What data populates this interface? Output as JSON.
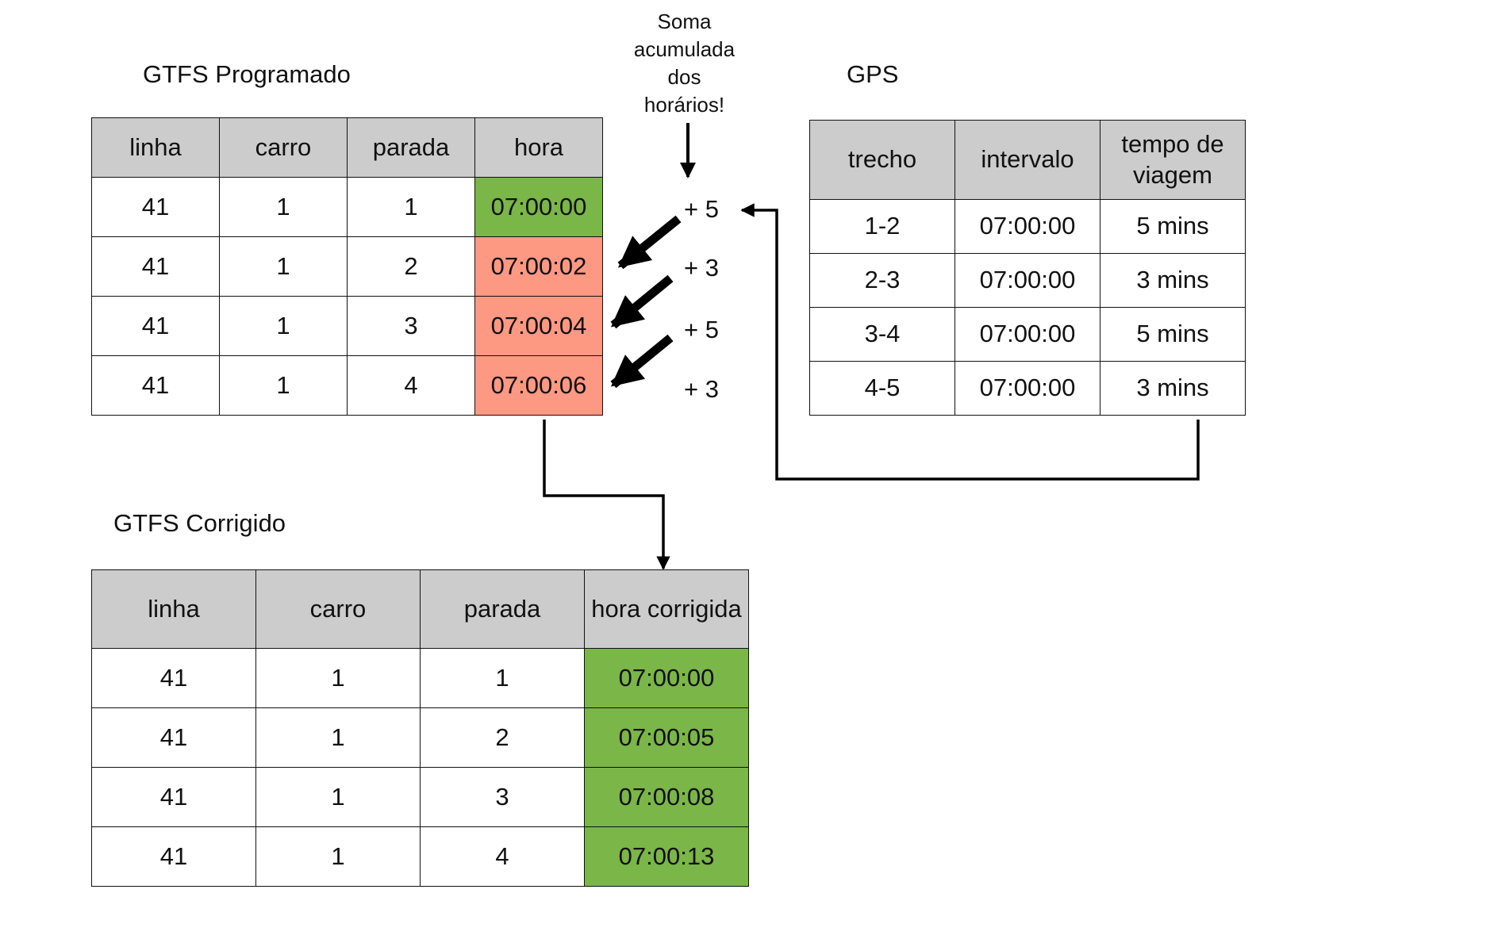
{
  "titles": {
    "programado": "GTFS Programado",
    "gps": "GPS",
    "corrigido": "GTFS Corrigido"
  },
  "note": "Soma acumulada dos horários!",
  "programado": {
    "headers": [
      "linha",
      "carro",
      "parada",
      "hora"
    ],
    "rows": [
      {
        "linha": "41",
        "carro": "1",
        "parada": "1",
        "hora": "07:00:00",
        "status": "ok"
      },
      {
        "linha": "41",
        "carro": "1",
        "parada": "2",
        "hora": "07:00:02",
        "status": "wrong"
      },
      {
        "linha": "41",
        "carro": "1",
        "parada": "3",
        "hora": "07:00:04",
        "status": "wrong"
      },
      {
        "linha": "41",
        "carro": "1",
        "parada": "4",
        "hora": "07:00:06",
        "status": "wrong"
      }
    ]
  },
  "gps": {
    "headers": [
      "trecho",
      "intervalo",
      "tempo de viagem"
    ],
    "rows": [
      {
        "trecho": "1-2",
        "intervalo": "07:00:00",
        "tempo": "5 mins"
      },
      {
        "trecho": "2-3",
        "intervalo": "07:00:00",
        "tempo": "3 mins"
      },
      {
        "trecho": "3-4",
        "intervalo": "07:00:00",
        "tempo": "5 mins"
      },
      {
        "trecho": "4-5",
        "intervalo": "07:00:00",
        "tempo": "3 mins"
      }
    ]
  },
  "increments": [
    "+ 5",
    "+ 3",
    "+ 5",
    "+ 3"
  ],
  "corrigido": {
    "headers": [
      "linha",
      "carro",
      "parada",
      "hora corrigida"
    ],
    "rows": [
      {
        "linha": "41",
        "carro": "1",
        "parada": "1",
        "hora": "07:00:00"
      },
      {
        "linha": "41",
        "carro": "1",
        "parada": "2",
        "hora": "07:00:05"
      },
      {
        "linha": "41",
        "carro": "1",
        "parada": "3",
        "hora": "07:00:08"
      },
      {
        "linha": "41",
        "carro": "1",
        "parada": "4",
        "hora": "07:00:13"
      }
    ]
  },
  "colors": {
    "header_bg": "#cccccc",
    "ok": "#7ab648",
    "wrong": "#fd9882",
    "line": "#000000"
  }
}
